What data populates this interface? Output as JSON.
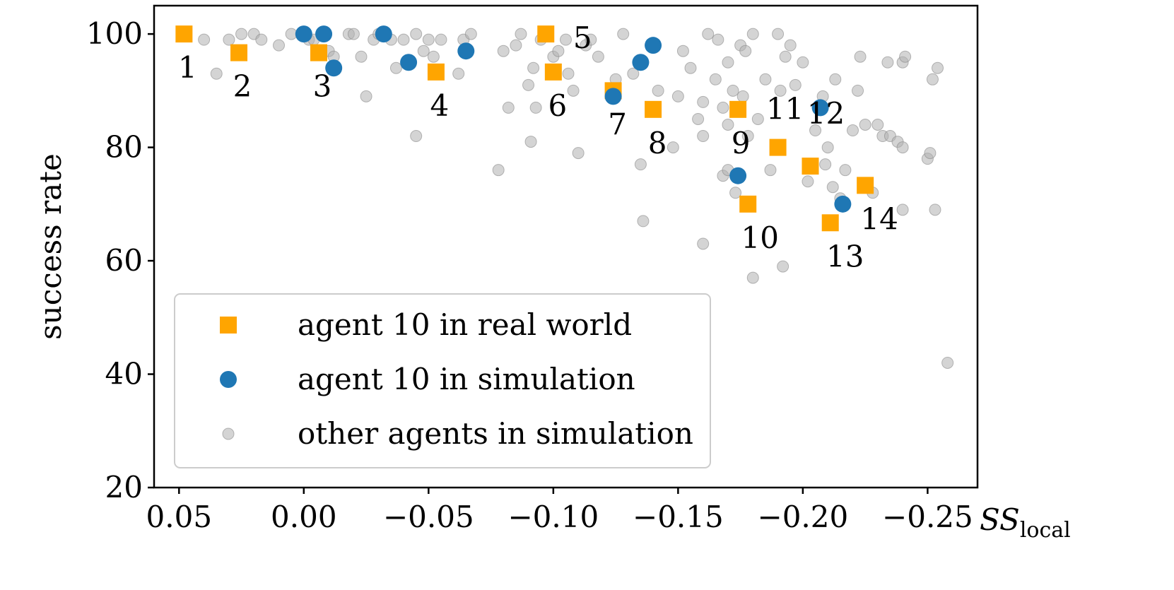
{
  "chart_data": {
    "type": "scatter",
    "title": "",
    "xlabel": "SS",
    "xlabel_sub": "local",
    "ylabel": "success rate",
    "xlim": [
      0.06,
      -0.27
    ],
    "ylim": [
      20,
      105
    ],
    "xticks": [
      0.05,
      0.0,
      -0.05,
      -0.1,
      -0.15,
      -0.2,
      -0.25
    ],
    "xtick_labels": [
      "0.05",
      "0.00",
      "−0.05",
      "−0.10",
      "−0.15",
      "−0.20",
      "−0.25"
    ],
    "yticks": [
      20,
      40,
      60,
      80,
      100
    ],
    "ytick_labels": [
      "20",
      "40",
      "60",
      "80",
      "100"
    ],
    "grid": false,
    "legend_position": "bottom-left",
    "series": [
      {
        "name": "agent 10 in real world",
        "marker": "square",
        "color": "#FFA500",
        "points": [
          {
            "x": 0.048,
            "y": 100,
            "label": "1"
          },
          {
            "x": 0.026,
            "y": 96.7,
            "label": "2"
          },
          {
            "x": -0.006,
            "y": 96.7,
            "label": "3"
          },
          {
            "x": -0.053,
            "y": 93.3,
            "label": "4"
          },
          {
            "x": -0.097,
            "y": 100,
            "label": "5"
          },
          {
            "x": -0.1,
            "y": 93.3,
            "label": "6"
          },
          {
            "x": -0.124,
            "y": 90,
            "label": "7"
          },
          {
            "x": -0.14,
            "y": 86.7,
            "label": "8"
          },
          {
            "x": -0.174,
            "y": 86.7,
            "label": "9"
          },
          {
            "x": -0.178,
            "y": 70,
            "label": "10"
          },
          {
            "x": -0.19,
            "y": 80,
            "label": "11"
          },
          {
            "x": -0.203,
            "y": 76.7,
            "label": "12"
          },
          {
            "x": -0.211,
            "y": 66.7,
            "label": "13"
          },
          {
            "x": -0.225,
            "y": 73.3,
            "label": "14"
          }
        ]
      },
      {
        "name": "agent 10 in simulation",
        "marker": "circle",
        "color": "#1F77B4",
        "points": [
          {
            "x": 0.0,
            "y": 100
          },
          {
            "x": -0.008,
            "y": 100
          },
          {
            "x": -0.012,
            "y": 94
          },
          {
            "x": -0.032,
            "y": 100
          },
          {
            "x": -0.042,
            "y": 95
          },
          {
            "x": -0.065,
            "y": 97
          },
          {
            "x": -0.124,
            "y": 89
          },
          {
            "x": -0.135,
            "y": 95
          },
          {
            "x": -0.14,
            "y": 98
          },
          {
            "x": -0.174,
            "y": 75
          },
          {
            "x": -0.207,
            "y": 87
          },
          {
            "x": -0.216,
            "y": 70
          }
        ]
      },
      {
        "name": "other agents in simulation",
        "marker": "circle",
        "color": "#B0B0B0",
        "points": [
          {
            "x": 0.04,
            "y": 99
          },
          {
            "x": 0.035,
            "y": 93
          },
          {
            "x": 0.03,
            "y": 99
          },
          {
            "x": 0.025,
            "y": 100
          },
          {
            "x": 0.02,
            "y": 100
          },
          {
            "x": 0.017,
            "y": 99
          },
          {
            "x": 0.01,
            "y": 98
          },
          {
            "x": 0.005,
            "y": 100
          },
          {
            "x": -0.002,
            "y": 99
          },
          {
            "x": -0.004,
            "y": 99
          },
          {
            "x": -0.01,
            "y": 97
          },
          {
            "x": -0.012,
            "y": 96
          },
          {
            "x": -0.018,
            "y": 100
          },
          {
            "x": -0.02,
            "y": 100
          },
          {
            "x": -0.023,
            "y": 96
          },
          {
            "x": -0.025,
            "y": 89
          },
          {
            "x": -0.028,
            "y": 99
          },
          {
            "x": -0.03,
            "y": 100
          },
          {
            "x": -0.035,
            "y": 99
          },
          {
            "x": -0.037,
            "y": 94
          },
          {
            "x": -0.04,
            "y": 99
          },
          {
            "x": -0.045,
            "y": 100
          },
          {
            "x": -0.045,
            "y": 82
          },
          {
            "x": -0.048,
            "y": 97
          },
          {
            "x": -0.05,
            "y": 99
          },
          {
            "x": -0.052,
            "y": 96
          },
          {
            "x": -0.055,
            "y": 99
          },
          {
            "x": -0.062,
            "y": 93
          },
          {
            "x": -0.064,
            "y": 99
          },
          {
            "x": -0.067,
            "y": 100
          },
          {
            "x": -0.078,
            "y": 76
          },
          {
            "x": -0.08,
            "y": 97
          },
          {
            "x": -0.082,
            "y": 87
          },
          {
            "x": -0.085,
            "y": 98
          },
          {
            "x": -0.087,
            "y": 100
          },
          {
            "x": -0.09,
            "y": 91
          },
          {
            "x": -0.091,
            "y": 81
          },
          {
            "x": -0.092,
            "y": 94
          },
          {
            "x": -0.093,
            "y": 87
          },
          {
            "x": -0.095,
            "y": 99
          },
          {
            "x": -0.1,
            "y": 96
          },
          {
            "x": -0.102,
            "y": 97
          },
          {
            "x": -0.105,
            "y": 99
          },
          {
            "x": -0.106,
            "y": 93
          },
          {
            "x": -0.108,
            "y": 90
          },
          {
            "x": -0.11,
            "y": 79
          },
          {
            "x": -0.113,
            "y": 98
          },
          {
            "x": -0.115,
            "y": 99
          },
          {
            "x": -0.118,
            "y": 96
          },
          {
            "x": -0.125,
            "y": 92
          },
          {
            "x": -0.128,
            "y": 100
          },
          {
            "x": -0.132,
            "y": 93
          },
          {
            "x": -0.135,
            "y": 77
          },
          {
            "x": -0.136,
            "y": 67
          },
          {
            "x": -0.142,
            "y": 90
          },
          {
            "x": -0.148,
            "y": 80
          },
          {
            "x": -0.15,
            "y": 89
          },
          {
            "x": -0.152,
            "y": 97
          },
          {
            "x": -0.155,
            "y": 94
          },
          {
            "x": -0.158,
            "y": 85
          },
          {
            "x": -0.16,
            "y": 88
          },
          {
            "x": -0.16,
            "y": 82
          },
          {
            "x": -0.16,
            "y": 63
          },
          {
            "x": -0.162,
            "y": 100
          },
          {
            "x": -0.165,
            "y": 92
          },
          {
            "x": -0.166,
            "y": 99
          },
          {
            "x": -0.168,
            "y": 87
          },
          {
            "x": -0.168,
            "y": 75
          },
          {
            "x": -0.17,
            "y": 84
          },
          {
            "x": -0.17,
            "y": 95
          },
          {
            "x": -0.17,
            "y": 76
          },
          {
            "x": -0.172,
            "y": 90
          },
          {
            "x": -0.173,
            "y": 72
          },
          {
            "x": -0.175,
            "y": 98
          },
          {
            "x": -0.176,
            "y": 89
          },
          {
            "x": -0.177,
            "y": 97
          },
          {
            "x": -0.178,
            "y": 82
          },
          {
            "x": -0.18,
            "y": 100
          },
          {
            "x": -0.18,
            "y": 57
          },
          {
            "x": -0.182,
            "y": 85
          },
          {
            "x": -0.185,
            "y": 92
          },
          {
            "x": -0.187,
            "y": 76
          },
          {
            "x": -0.19,
            "y": 100
          },
          {
            "x": -0.191,
            "y": 90
          },
          {
            "x": -0.192,
            "y": 59
          },
          {
            "x": -0.193,
            "y": 96
          },
          {
            "x": -0.195,
            "y": 98
          },
          {
            "x": -0.197,
            "y": 91
          },
          {
            "x": -0.2,
            "y": 95
          },
          {
            "x": -0.202,
            "y": 74
          },
          {
            "x": -0.205,
            "y": 83
          },
          {
            "x": -0.208,
            "y": 89
          },
          {
            "x": -0.209,
            "y": 77
          },
          {
            "x": -0.21,
            "y": 80
          },
          {
            "x": -0.212,
            "y": 73
          },
          {
            "x": -0.213,
            "y": 92
          },
          {
            "x": -0.215,
            "y": 71
          },
          {
            "x": -0.217,
            "y": 76
          },
          {
            "x": -0.22,
            "y": 83
          },
          {
            "x": -0.222,
            "y": 90
          },
          {
            "x": -0.223,
            "y": 96
          },
          {
            "x": -0.225,
            "y": 84
          },
          {
            "x": -0.228,
            "y": 72
          },
          {
            "x": -0.23,
            "y": 84
          },
          {
            "x": -0.232,
            "y": 82
          },
          {
            "x": -0.234,
            "y": 95
          },
          {
            "x": -0.235,
            "y": 82
          },
          {
            "x": -0.238,
            "y": 81
          },
          {
            "x": -0.24,
            "y": 80
          },
          {
            "x": -0.24,
            "y": 95
          },
          {
            "x": -0.241,
            "y": 96
          },
          {
            "x": -0.24,
            "y": 69
          },
          {
            "x": -0.25,
            "y": 78
          },
          {
            "x": -0.251,
            "y": 79
          },
          {
            "x": -0.252,
            "y": 92
          },
          {
            "x": -0.253,
            "y": 69
          },
          {
            "x": -0.254,
            "y": 94
          },
          {
            "x": -0.258,
            "y": 42
          }
        ]
      }
    ]
  }
}
